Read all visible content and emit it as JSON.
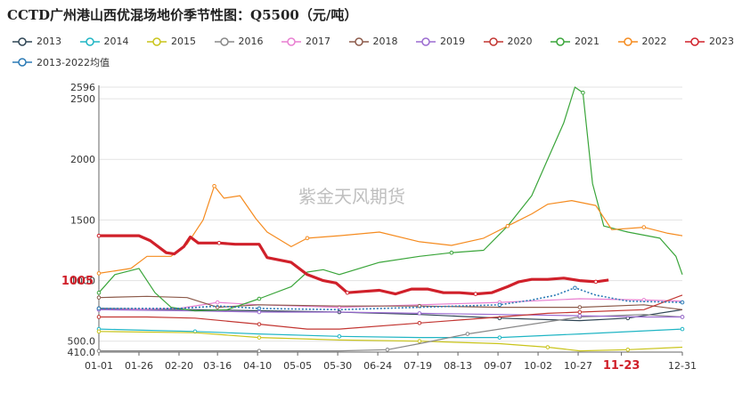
{
  "title": "CCTD广州港山西优混场地价季节性图：Q5500（元/吨）",
  "watermark": "紫金天风期货",
  "chart_data": {
    "type": "line",
    "ylim": [
      410,
      2596
    ],
    "y_ticks": [
      410,
      500,
      1000,
      1500,
      2000,
      2500,
      2596
    ],
    "y_tick_labels": [
      "410.0",
      "500.0",
      "1000",
      "1500",
      "2000",
      "2500",
      "2596"
    ],
    "x_tick_labels": [
      "01-01",
      "01-26",
      "02-20",
      "03-16",
      "04-10",
      "05-05",
      "05-30",
      "06-24",
      "07-19",
      "08-13",
      "09-07",
      "10-02",
      "10-27",
      "11-23",
      "12-31"
    ],
    "x_tick_days": [
      0,
      25,
      50,
      74,
      99,
      124,
      149,
      174,
      199,
      224,
      249,
      274,
      299,
      326,
      364
    ],
    "highlight_x_label": "11-23",
    "highlight_value_label": "1005",
    "highlight_value": 1005,
    "series": [
      {
        "name": "2013",
        "color": "#2f4554",
        "width": 1.2,
        "dash": "",
        "x": [
          0,
          60,
          150,
          200,
          250,
          300,
          330,
          364
        ],
        "y": [
          770,
          760,
          740,
          720,
          690,
          670,
          690,
          760
        ]
      },
      {
        "name": "2014",
        "color": "#1fb5c4",
        "width": 1.2,
        "dash": "",
        "x": [
          0,
          30,
          60,
          100,
          150,
          200,
          250,
          300,
          364
        ],
        "y": [
          600,
          590,
          580,
          560,
          540,
          530,
          530,
          560,
          600
        ]
      },
      {
        "name": "2015",
        "color": "#c9c41a",
        "width": 1.2,
        "dash": "",
        "x": [
          0,
          60,
          100,
          150,
          200,
          250,
          280,
          300,
          330,
          364
        ],
        "y": [
          580,
          570,
          530,
          510,
          500,
          480,
          450,
          420,
          430,
          450
        ]
      },
      {
        "name": "2016",
        "color": "#888888",
        "width": 1.2,
        "dash": "",
        "x": [
          0,
          50,
          100,
          150,
          180,
          200,
          230,
          260,
          300,
          340,
          364
        ],
        "y": [
          420,
          420,
          420,
          420,
          430,
          480,
          560,
          620,
          700,
          720,
          700
        ]
      },
      {
        "name": "2017",
        "color": "#e87fd1",
        "width": 1.2,
        "dash": "",
        "x": [
          0,
          50,
          74,
          100,
          150,
          200,
          250,
          300,
          340,
          364
        ],
        "y": [
          760,
          770,
          820,
          800,
          780,
          800,
          820,
          850,
          840,
          830
        ]
      },
      {
        "name": "2018",
        "color": "#8c5a4a",
        "width": 1.2,
        "dash": "",
        "x": [
          0,
          30,
          55,
          74,
          100,
          150,
          200,
          250,
          280,
          300,
          340,
          364
        ],
        "y": [
          860,
          870,
          860,
          780,
          800,
          790,
          790,
          780,
          780,
          780,
          800,
          760
        ]
      },
      {
        "name": "2019",
        "color": "#9b6bd0",
        "width": 1.2,
        "dash": "",
        "x": [
          0,
          60,
          100,
          150,
          200,
          250,
          300,
          340,
          364
        ],
        "y": [
          760,
          750,
          740,
          740,
          730,
          720,
          710,
          700,
          700
        ]
      },
      {
        "name": "2020",
        "color": "#c23531",
        "width": 1.2,
        "dash": "",
        "x": [
          0,
          30,
          60,
          100,
          130,
          150,
          200,
          250,
          280,
          300,
          340,
          364
        ],
        "y": [
          700,
          700,
          690,
          640,
          600,
          600,
          650,
          700,
          730,
          740,
          760,
          880
        ]
      },
      {
        "name": "2021",
        "color": "#3aa53a",
        "width": 1.2,
        "dash": "",
        "x": [
          0,
          10,
          25,
          35,
          45,
          60,
          80,
          100,
          120,
          130,
          140,
          150,
          175,
          200,
          220,
          240,
          255,
          270,
          280,
          290,
          297,
          302,
          308,
          315,
          330,
          350,
          360,
          364
        ],
        "y": [
          900,
          1050,
          1100,
          900,
          780,
          750,
          760,
          850,
          950,
          1070,
          1090,
          1050,
          1150,
          1200,
          1230,
          1250,
          1450,
          1700,
          2000,
          2300,
          2596,
          2550,
          1800,
          1450,
          1400,
          1350,
          1200,
          1050
        ]
      },
      {
        "name": "2022",
        "color": "#f58b1f",
        "width": 1.2,
        "dash": "",
        "x": [
          0,
          20,
          30,
          45,
          55,
          65,
          72,
          78,
          88,
          98,
          105,
          120,
          130,
          150,
          175,
          200,
          220,
          240,
          255,
          270,
          280,
          295,
          310,
          320,
          340,
          355,
          364
        ],
        "y": [
          1060,
          1100,
          1200,
          1200,
          1300,
          1500,
          1780,
          1680,
          1700,
          1510,
          1400,
          1280,
          1350,
          1370,
          1400,
          1320,
          1290,
          1350,
          1450,
          1550,
          1630,
          1660,
          1620,
          1420,
          1440,
          1390,
          1370
        ]
      },
      {
        "name": "2023",
        "color": "#d0202a",
        "width": 3.2,
        "dash": "",
        "x": [
          0,
          25,
          32,
          42,
          47,
          53,
          57,
          62,
          75,
          85,
          100,
          105,
          120,
          130,
          140,
          148,
          155,
          165,
          175,
          185,
          195,
          205,
          215,
          225,
          235,
          245,
          255,
          262,
          270,
          280,
          290,
          300,
          310,
          318
        ],
        "y": [
          1370,
          1370,
          1330,
          1230,
          1220,
          1280,
          1360,
          1310,
          1310,
          1300,
          1300,
          1190,
          1150,
          1050,
          1000,
          980,
          900,
          910,
          920,
          890,
          930,
          930,
          900,
          900,
          890,
          900,
          950,
          990,
          1010,
          1010,
          1020,
          1000,
          990,
          1005
        ]
      },
      {
        "name": "2013-2022均值",
        "color": "#2a7ab5",
        "width": 1.6,
        "dash": "2,2",
        "x": [
          0,
          50,
          74,
          100,
          150,
          200,
          250,
          270,
          285,
          297,
          310,
          330,
          364
        ],
        "y": [
          770,
          770,
          790,
          770,
          760,
          780,
          800,
          840,
          880,
          940,
          880,
          830,
          820
        ]
      }
    ]
  }
}
